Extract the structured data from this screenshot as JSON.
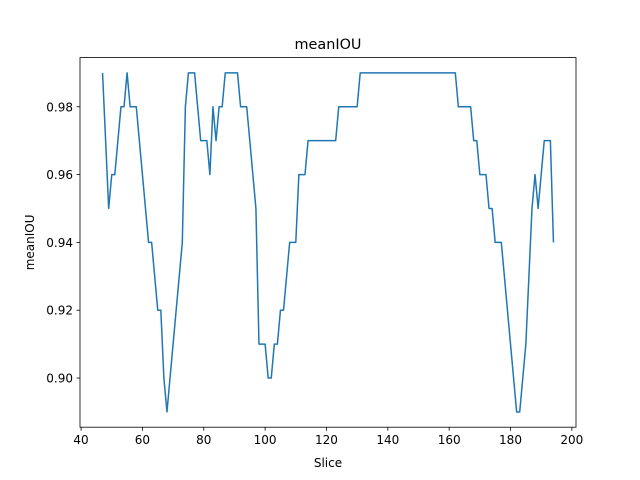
{
  "chart_data": {
    "type": "line",
    "title": "meanIOU",
    "xlabel": "Slice",
    "ylabel": "meanIOU",
    "xlim": [
      39.65,
      201.35
    ],
    "ylim": [
      0.8855,
      0.9945
    ],
    "xticks": [
      40,
      60,
      80,
      100,
      120,
      140,
      160,
      180,
      200
    ],
    "xtick_labels": [
      "40",
      "60",
      "80",
      "100",
      "120",
      "140",
      "160",
      "180",
      "200"
    ],
    "yticks": [
      0.9,
      0.92,
      0.94,
      0.96,
      0.98
    ],
    "ytick_labels": [
      "0.90",
      "0.92",
      "0.94",
      "0.96",
      "0.98"
    ],
    "grid": false,
    "legend": "none",
    "line_color": "#1f77b4",
    "series": [
      {
        "x": [
          47,
          49,
          50,
          51,
          53,
          54,
          55,
          56,
          58,
          60,
          62,
          63,
          64,
          65,
          66,
          67,
          68,
          69,
          71,
          72,
          73,
          74,
          75,
          76,
          77,
          79,
          81,
          82,
          83,
          84,
          85,
          86,
          87,
          88,
          90,
          91,
          92,
          94,
          95,
          96,
          97,
          98,
          99,
          100,
          101,
          102,
          103,
          104,
          105,
          106,
          107,
          108,
          109,
          110,
          111,
          112,
          113,
          114,
          115,
          116,
          117,
          118,
          119,
          120,
          121,
          122,
          123,
          124,
          125,
          126,
          127,
          128,
          129,
          130,
          131,
          132,
          133,
          134,
          135,
          136,
          137,
          138,
          139,
          140,
          141,
          142,
          143,
          144,
          145,
          146,
          147,
          148,
          149,
          150,
          151,
          152,
          153,
          154,
          155,
          156,
          157,
          158,
          159,
          160,
          161,
          162,
          163,
          164,
          165,
          166,
          167,
          168,
          169,
          170,
          171,
          172,
          173,
          174,
          175,
          176,
          177,
          178,
          179,
          180,
          181,
          182,
          183,
          184,
          185,
          186,
          187,
          188,
          189,
          190,
          191,
          192,
          193,
          194
        ],
        "y": [
          0.99,
          0.95,
          0.96,
          0.96,
          0.98,
          0.98,
          0.99,
          0.98,
          0.98,
          0.96,
          0.94,
          0.94,
          0.93,
          0.92,
          0.92,
          0.9,
          0.89,
          0.9,
          0.92,
          0.93,
          0.94,
          0.98,
          0.99,
          0.99,
          0.99,
          0.97,
          0.97,
          0.96,
          0.98,
          0.97,
          0.98,
          0.98,
          0.99,
          0.99,
          0.99,
          0.99,
          0.98,
          0.98,
          0.97,
          0.96,
          0.95,
          0.91,
          0.91,
          0.91,
          0.9,
          0.9,
          0.91,
          0.91,
          0.92,
          0.92,
          0.93,
          0.94,
          0.94,
          0.94,
          0.96,
          0.96,
          0.96,
          0.97,
          0.97,
          0.97,
          0.97,
          0.97,
          0.97,
          0.97,
          0.97,
          0.97,
          0.97,
          0.98,
          0.98,
          0.98,
          0.98,
          0.98,
          0.98,
          0.98,
          0.99,
          0.99,
          0.99,
          0.99,
          0.99,
          0.99,
          0.99,
          0.99,
          0.99,
          0.99,
          0.99,
          0.99,
          0.99,
          0.99,
          0.99,
          0.99,
          0.99,
          0.99,
          0.99,
          0.99,
          0.99,
          0.99,
          0.99,
          0.99,
          0.99,
          0.99,
          0.99,
          0.99,
          0.99,
          0.99,
          0.99,
          0.99,
          0.98,
          0.98,
          0.98,
          0.98,
          0.98,
          0.97,
          0.97,
          0.96,
          0.96,
          0.96,
          0.95,
          0.95,
          0.94,
          0.94,
          0.94,
          0.93,
          0.92,
          0.91,
          0.9,
          0.89,
          0.89,
          0.9,
          0.91,
          0.93,
          0.95,
          0.96,
          0.95,
          0.96,
          0.97,
          0.97,
          0.97,
          0.94
        ]
      }
    ]
  }
}
